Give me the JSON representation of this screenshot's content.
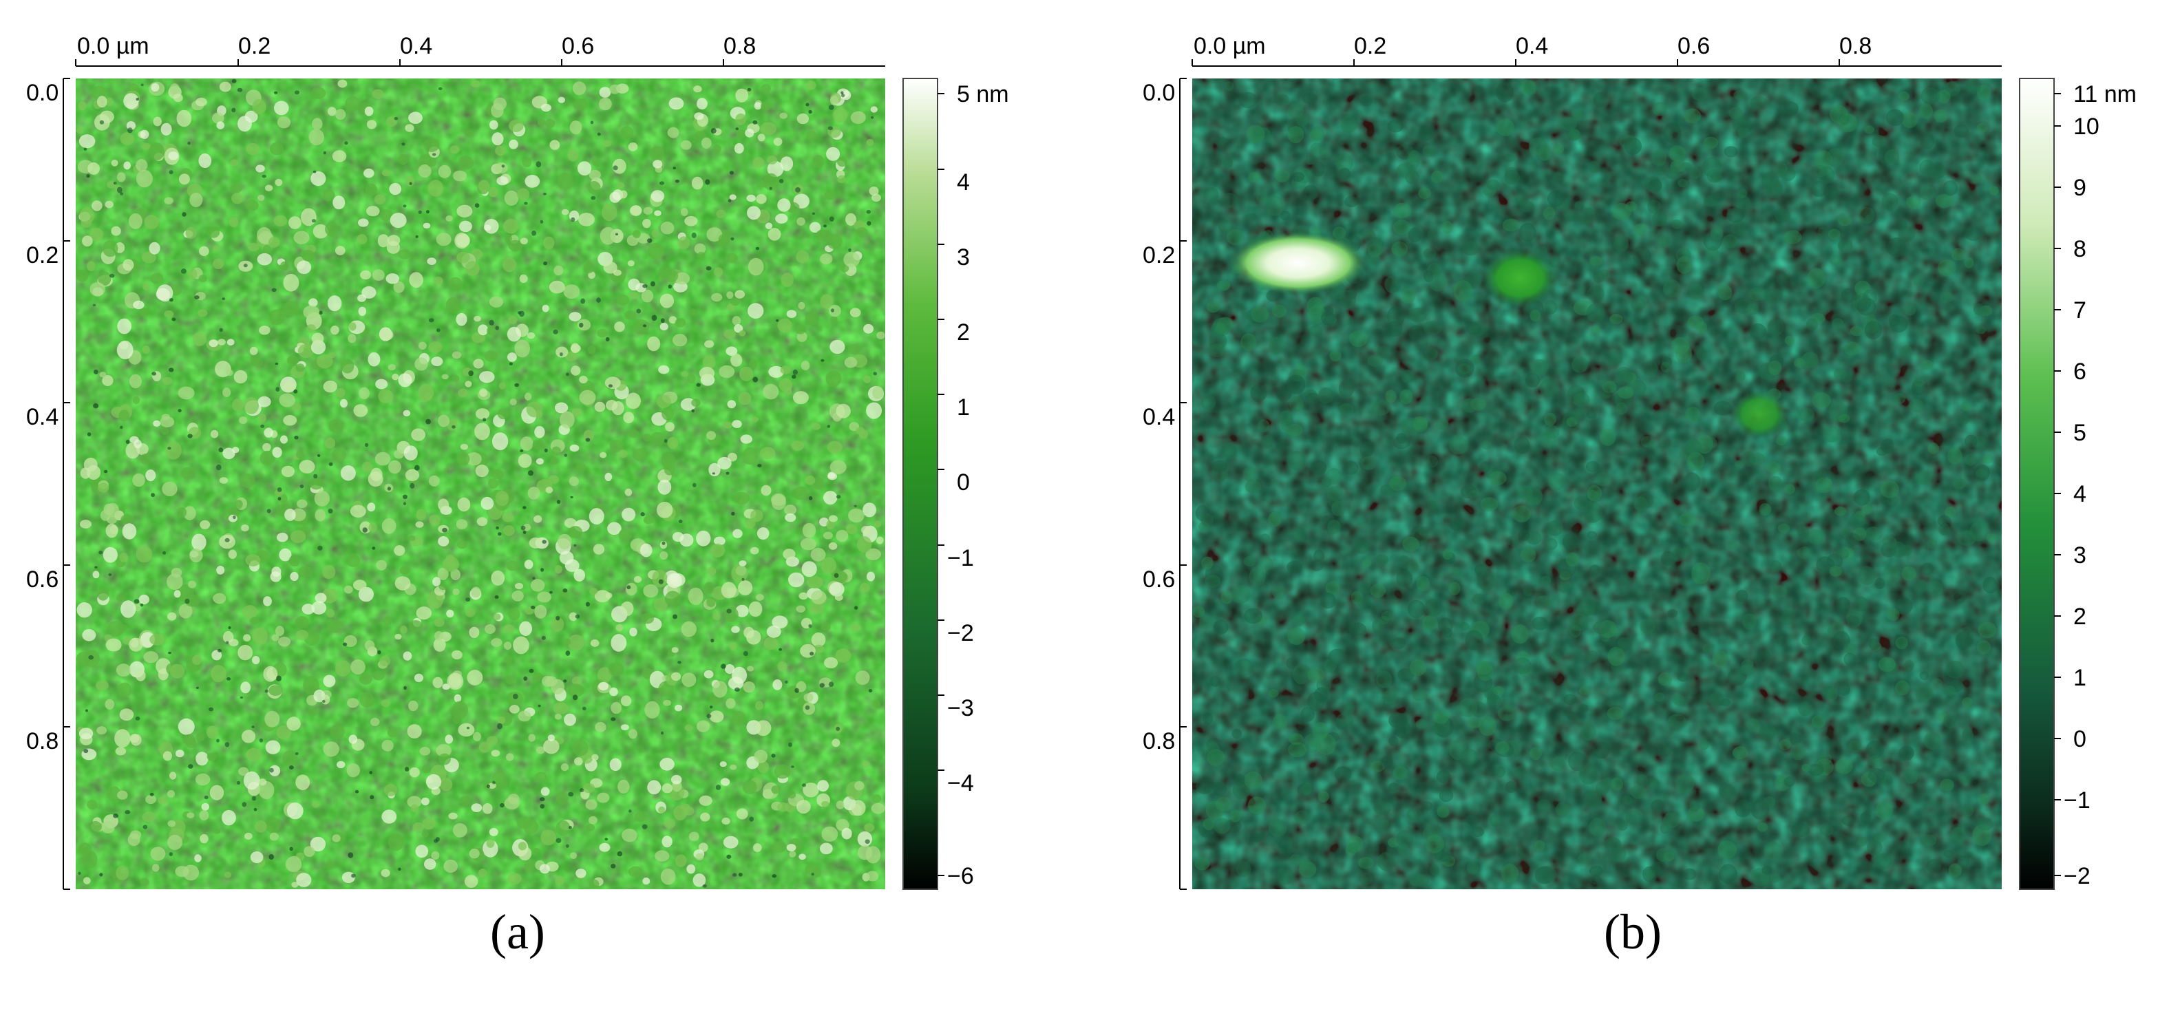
{
  "panels": [
    {
      "id": "a",
      "label": "(a)",
      "x_ticks": [
        "0.0 µm",
        "0.2",
        "0.4",
        "0.6",
        "0.8"
      ],
      "y_ticks": [
        "0.0",
        "0.2",
        "0.4",
        "0.6",
        "0.8"
      ],
      "colorbar_ticks": [
        "5 nm",
        "4",
        "3",
        "2",
        "1",
        "0",
        "−1",
        "−2",
        "−3",
        "−4",
        "−6"
      ],
      "colorbar_range_nm": [
        -6.5,
        5.2
      ],
      "colormap": [
        "#000000",
        "#0c3a1a",
        "#1b6a2e",
        "#2e9a23",
        "#5dba3d",
        "#b7dc92",
        "#ffffff"
      ],
      "surface": "dense granular texture"
    },
    {
      "id": "b",
      "label": "(b)",
      "x_ticks": [
        "0.0 µm",
        "0.2",
        "0.4",
        "0.6",
        "0.8"
      ],
      "y_ticks": [
        "0.0",
        "0.2",
        "0.4",
        "0.6",
        "0.8"
      ],
      "colorbar_ticks": [
        "11 nm",
        "10",
        "9",
        "8",
        "7",
        "6",
        "5",
        "4",
        "3",
        "2",
        "1",
        "0",
        "−1",
        "−2"
      ],
      "colorbar_range_nm": [
        -2.3,
        11.1
      ],
      "colormap": [
        "#000000",
        "#0b2a1c",
        "#165a3c",
        "#23903a",
        "#5cbf50",
        "#cfeab7",
        "#ffffff"
      ],
      "surface": "dark granular texture with bright islands"
    }
  ]
}
